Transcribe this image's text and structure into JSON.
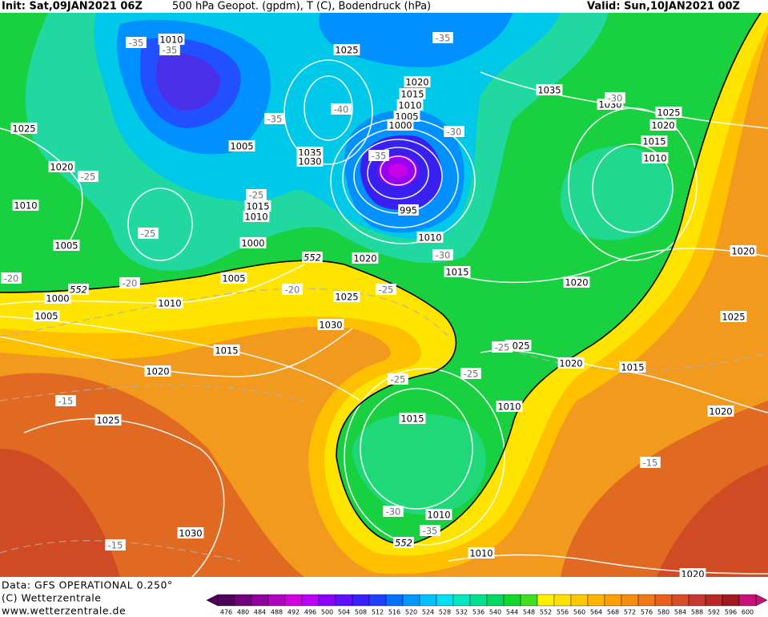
{
  "header": {
    "init": "Init: Sat,09JAN2021 06Z",
    "title": "500 hPa Geopot. (gpdm), T (C), Bodendruck (hPa)",
    "valid": "Valid: Sun,10JAN2021 00Z"
  },
  "map": {
    "pressure_labels": [
      1010,
      1025,
      1025,
      1005,
      1035,
      1030,
      1020,
      1010,
      1015,
      1010,
      1005,
      1000,
      1020,
      1015,
      1010,
      1005,
      1000,
      995,
      1010,
      1020,
      1015,
      1005,
      1000,
      1010,
      1005,
      1025,
      1030,
      1015,
      1020,
      1025,
      1030,
      1035,
      1030,
      1025,
      1020,
      1015,
      1010,
      1020,
      1020,
      1025,
      1025,
      1020,
      1015,
      1010,
      1020,
      1015,
      1010,
      1010,
      1020
    ],
    "temperature_labels": [
      -35,
      -35,
      -35,
      -35,
      -40,
      -30,
      -35,
      -25,
      -25,
      -25,
      -30,
      -20,
      -20,
      -20,
      -25,
      -30,
      -25,
      -25,
      -25,
      -15,
      -15,
      -30,
      -35,
      -15
    ],
    "contour_labels": [
      552,
      552,
      552
    ]
  },
  "footer": {
    "data": "Data: GFS OPERATIONAL 0.250°",
    "copyright": "(C) Wetterzentrale",
    "url": "www.wetterzentrale.de"
  },
  "colorbar": {
    "labels": [
      476,
      480,
      484,
      488,
      492,
      496,
      500,
      504,
      508,
      512,
      516,
      520,
      524,
      528,
      532,
      536,
      540,
      544,
      548,
      552,
      556,
      560,
      564,
      568,
      572,
      576,
      580,
      584,
      588,
      592,
      596,
      600
    ],
    "colors": [
      "#50005a",
      "#70007c",
      "#90009e",
      "#b000c0",
      "#d000e0",
      "#b800f8",
      "#8c00ff",
      "#6010ff",
      "#3820ff",
      "#2040ff",
      "#0070ff",
      "#0098ff",
      "#00c0ff",
      "#00e0f0",
      "#00e8c0",
      "#00e090",
      "#00d860",
      "#10d830",
      "#40e020",
      "#fff000",
      "#ffe000",
      "#ffc800",
      "#ffb400",
      "#ffa000",
      "#f88c10",
      "#f07818",
      "#e86020",
      "#d84c28",
      "#c83830",
      "#b82828",
      "#a01820",
      "#c8107a"
    ]
  }
}
